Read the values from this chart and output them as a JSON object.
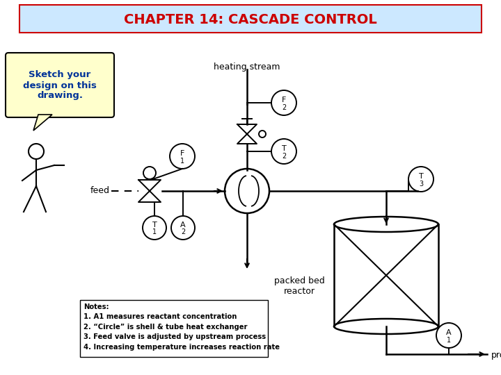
{
  "title": "CHAPTER 14: CASCADE CONTROL",
  "title_color": "#cc0000",
  "title_bg": "#cce8ff",
  "title_border": "#cc0000",
  "callout_text": "Sketch your\ndesign on this\ndrawing.",
  "callout_bg": "#ffffcc",
  "note_lines": "Notes:\n1. A1 measures reactant concentration\n2. “Circle” is shell & tube heat exchanger\n3. Feed valve is adjusted by upstream process\n4. Increasing temperature increases reaction rate",
  "bg_color": "#ffffff"
}
